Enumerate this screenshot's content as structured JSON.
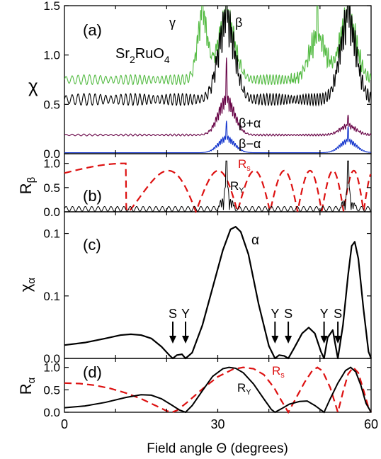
{
  "chart_data": [
    {
      "panel": "(a)",
      "type": "line",
      "ylabel": "χ",
      "ylim": [
        0,
        1.5
      ],
      "yticks": [
        "0.0",
        "0.5",
        "1.0",
        "1.5"
      ],
      "xlim": [
        0,
        60
      ],
      "annotations": [
        "Sr",
        "2",
        "RuO",
        "4",
        "γ",
        "β",
        "β+α",
        "β−α"
      ],
      "series": [
        {
          "name": "",
          "color": "#55bb44",
          "offset": 0.75,
          "peaks": [
            [
              27,
              1.5
            ],
            [
              31.7,
              1.5
            ],
            [
              49.5,
              1.27
            ],
            [
              55.5,
              1.5
            ]
          ],
          "osc_amp": 0.05
        },
        {
          "name": "",
          "color": "#000000",
          "offset": 0.55,
          "peaks": [
            [
              31.7,
              1.5
            ],
            [
              55.5,
              1.5
            ]
          ],
          "osc_amp": 0.06
        },
        {
          "name": "β+α",
          "color": "#660044",
          "offset": 0.19,
          "peaks": [
            [
              31.7,
              0.6
            ],
            [
              55.5,
              0.3
            ]
          ],
          "osc_amp": 0.01
        },
        {
          "name": "β−α",
          "color": "#1133cc",
          "offset": 0.01,
          "peaks": [
            [
              31.7,
              0.18
            ],
            [
              55.5,
              0.15
            ]
          ],
          "osc_amp": 0.0
        }
      ]
    },
    {
      "panel": "(b)",
      "type": "line",
      "ylabel": "Rβ",
      "ylim": [
        0,
        1.2
      ],
      "yticks": [
        "0.0",
        "0.5",
        "1.0"
      ],
      "xlim": [
        0,
        60
      ],
      "annotations": [
        "R",
        "s",
        "R",
        "Y"
      ],
      "series": [
        {
          "name": "R_s",
          "color": "#dd1111",
          "dashed": true
        },
        {
          "name": "R_Y",
          "color": "#000000"
        }
      ]
    },
    {
      "panel": "(c)",
      "type": "line",
      "ylabel": "χα",
      "ylim": [
        0,
        0.176
      ],
      "yticks": [
        "0.0",
        "0.1",
        "0.1"
      ],
      "xlim": [
        0,
        60
      ],
      "annotations": [
        "α",
        "S",
        "Y",
        "Y",
        "S",
        "Y",
        "S"
      ],
      "arrows": [
        {
          "label": "S",
          "x": 21.2
        },
        {
          "label": "Y",
          "x": 23.7
        },
        {
          "label": "Y",
          "x": 41.2
        },
        {
          "label": "S",
          "x": 43.8
        },
        {
          "label": "Y",
          "x": 50.8
        },
        {
          "label": "S",
          "x": 53.5
        }
      ],
      "series": [
        {
          "name": "α",
          "color": "#000000",
          "points": [
            [
              0,
              0.016
            ],
            [
              4,
              0.019
            ],
            [
              8,
              0.024
            ],
            [
              11,
              0.028
            ],
            [
              13,
              0.029
            ],
            [
              15,
              0.028
            ],
            [
              17,
              0.024
            ],
            [
              19,
              0.014
            ],
            [
              20.5,
              0.004
            ],
            [
              21.2,
              0.0
            ],
            [
              22,
              0.004
            ],
            [
              23,
              0.005
            ],
            [
              23.7,
              0.0
            ],
            [
              25,
              0.007
            ],
            [
              27,
              0.04
            ],
            [
              29,
              0.085
            ],
            [
              31,
              0.13
            ],
            [
              32.5,
              0.155
            ],
            [
              33.5,
              0.158
            ],
            [
              34.5,
              0.152
            ],
            [
              36,
              0.125
            ],
            [
              38,
              0.065
            ],
            [
              40,
              0.015
            ],
            [
              41.2,
              0.0
            ],
            [
              42,
              0.004
            ],
            [
              43,
              0.003
            ],
            [
              43.8,
              0.0
            ],
            [
              45,
              0.013
            ],
            [
              46.5,
              0.03
            ],
            [
              47.8,
              0.037
            ],
            [
              49,
              0.03
            ],
            [
              50.2,
              0.008
            ],
            [
              50.8,
              0.0
            ],
            [
              51.5,
              0.025
            ],
            [
              52.5,
              0.034
            ],
            [
              53.2,
              0.01
            ],
            [
              53.5,
              0.0
            ],
            [
              54.5,
              0.04
            ],
            [
              55.5,
              0.1
            ],
            [
              56.2,
              0.135
            ],
            [
              56.8,
              0.14
            ],
            [
              57.5,
              0.12
            ],
            [
              58.5,
              0.06
            ],
            [
              59.5,
              0.008
            ],
            [
              60,
              0.0
            ]
          ]
        }
      ]
    },
    {
      "panel": "(d)",
      "type": "line",
      "ylabel": "Rα",
      "ylim": [
        0,
        1.2
      ],
      "yticks": [
        "0.0",
        "0.5",
        "1.0"
      ],
      "xlim": [
        0,
        60
      ],
      "xticks": [
        "0",
        "30",
        "60"
      ],
      "xlabel": "Field angle Θ (degrees)",
      "annotations": [
        "R",
        "s",
        "R",
        "Y"
      ],
      "series": [
        {
          "name": "R_s",
          "color": "#dd1111",
          "dashed": true,
          "points": [
            [
              0,
              0.65
            ],
            [
              3,
              0.64
            ],
            [
              6,
              0.6
            ],
            [
              9,
              0.53
            ],
            [
              12,
              0.43
            ],
            [
              15,
              0.3
            ],
            [
              18,
              0.14
            ],
            [
              20,
              0.03
            ],
            [
              21,
              0.0
            ],
            [
              22,
              0.04
            ],
            [
              24,
              0.22
            ],
            [
              27,
              0.52
            ],
            [
              30,
              0.79
            ],
            [
              33,
              0.96
            ],
            [
              35,
              1.0
            ],
            [
              37,
              0.97
            ],
            [
              39,
              0.84
            ],
            [
              41,
              0.55
            ],
            [
              42.5,
              0.25
            ],
            [
              43.8,
              0.0
            ],
            [
              45,
              0.25
            ],
            [
              47,
              0.67
            ],
            [
              48.5,
              0.93
            ],
            [
              49.5,
              1.0
            ],
            [
              50.5,
              0.92
            ],
            [
              52,
              0.55
            ],
            [
              53.5,
              0.0
            ],
            [
              54.5,
              0.45
            ],
            [
              55.5,
              0.85
            ],
            [
              56.5,
              1.0
            ],
            [
              57.5,
              0.88
            ],
            [
              58.5,
              0.5
            ],
            [
              59.5,
              0.1
            ],
            [
              60,
              0.0
            ]
          ]
        },
        {
          "name": "R_Y",
          "color": "#000000",
          "points": [
            [
              0,
              0.1
            ],
            [
              4,
              0.14
            ],
            [
              8,
              0.22
            ],
            [
              12,
              0.33
            ],
            [
              15,
              0.39
            ],
            [
              17,
              0.38
            ],
            [
              19,
              0.3
            ],
            [
              21,
              0.16
            ],
            [
              22.5,
              0.05
            ],
            [
              23.7,
              0.0
            ],
            [
              25,
              0.15
            ],
            [
              27,
              0.48
            ],
            [
              29,
              0.8
            ],
            [
              31,
              0.97
            ],
            [
              32.2,
              1.0
            ],
            [
              33.5,
              0.98
            ],
            [
              35,
              0.88
            ],
            [
              37,
              0.63
            ],
            [
              39,
              0.3
            ],
            [
              40.5,
              0.06
            ],
            [
              41.2,
              0.0
            ],
            [
              42.5,
              0.08
            ],
            [
              44,
              0.18
            ],
            [
              46,
              0.24
            ],
            [
              47.5,
              0.25
            ],
            [
              49,
              0.15
            ],
            [
              50.8,
              0.0
            ],
            [
              52,
              0.3
            ],
            [
              53.5,
              0.65
            ],
            [
              55,
              0.93
            ],
            [
              56,
              1.0
            ],
            [
              57,
              0.9
            ],
            [
              58,
              0.6
            ],
            [
              59,
              0.2
            ],
            [
              60,
              0.0
            ]
          ]
        }
      ]
    }
  ]
}
